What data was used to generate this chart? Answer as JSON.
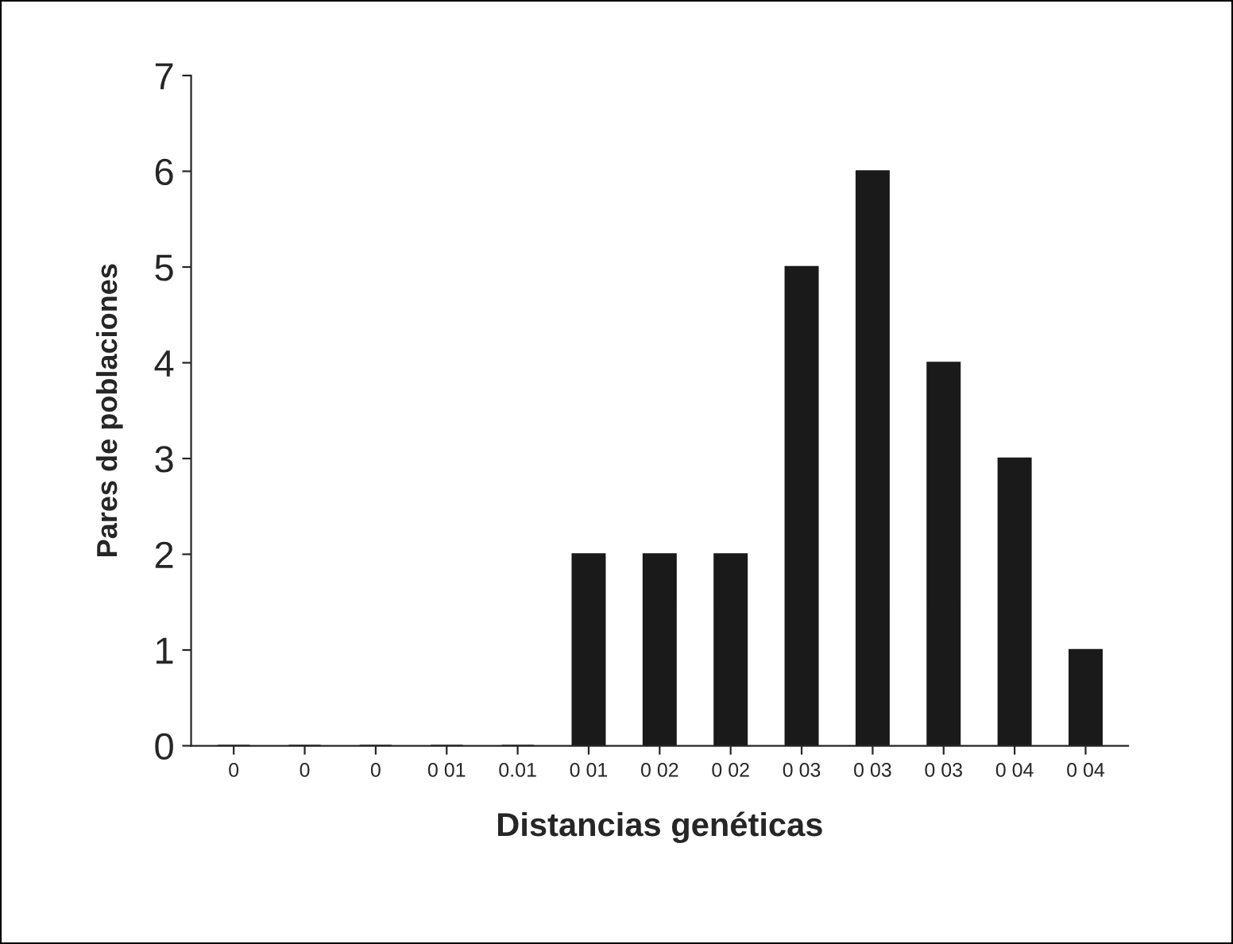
{
  "chart_data": {
    "type": "bar",
    "xlabel": "Distancias genéticas",
    "ylabel": "Pares de poblaciones",
    "categories": [
      "0",
      "0",
      "0",
      "0 01",
      "0.01",
      "0 01",
      "0 02",
      "0 02",
      "0 03",
      "0 03",
      "0 03",
      "0 04",
      "0 04"
    ],
    "values": [
      0,
      0,
      0,
      0,
      0,
      2,
      2,
      2,
      5,
      6,
      4,
      3,
      1
    ],
    "color": "#1a1a1a",
    "ylim": [
      0,
      7
    ],
    "yticks": [
      0,
      1,
      2,
      3,
      4,
      5,
      6,
      7
    ],
    "grid": false,
    "legend": false
  }
}
